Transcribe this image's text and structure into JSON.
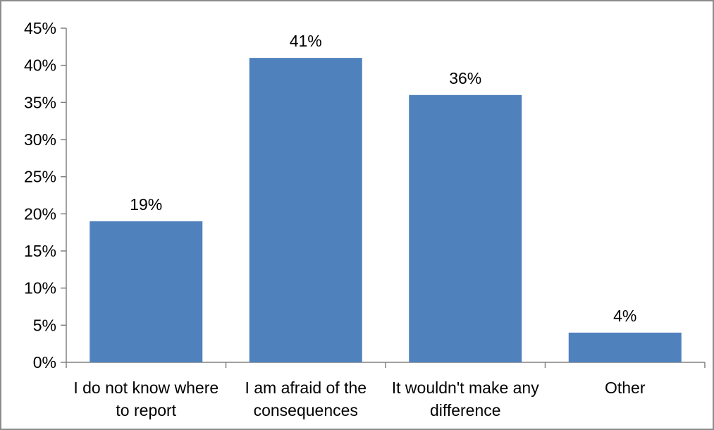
{
  "chart_data": {
    "type": "bar",
    "title": "",
    "xlabel": "",
    "ylabel": "",
    "ylim": [
      0,
      45
    ],
    "ytick_step": 5,
    "ytick_labels": [
      "0%",
      "5%",
      "10%",
      "15%",
      "20%",
      "25%",
      "30%",
      "35%",
      "40%",
      "45%"
    ],
    "categories": [
      [
        "I do not know where",
        "to report"
      ],
      [
        "I am afraid of the",
        "consequences"
      ],
      [
        "It wouldn't make any",
        "difference"
      ],
      [
        "Other"
      ]
    ],
    "values": [
      19,
      41,
      36,
      4
    ],
    "data_labels": [
      "19%",
      "41%",
      "36%",
      "4%"
    ],
    "bar_color": "#4f81bd",
    "axis_color": "#808080",
    "grid": false,
    "legend": "none"
  }
}
